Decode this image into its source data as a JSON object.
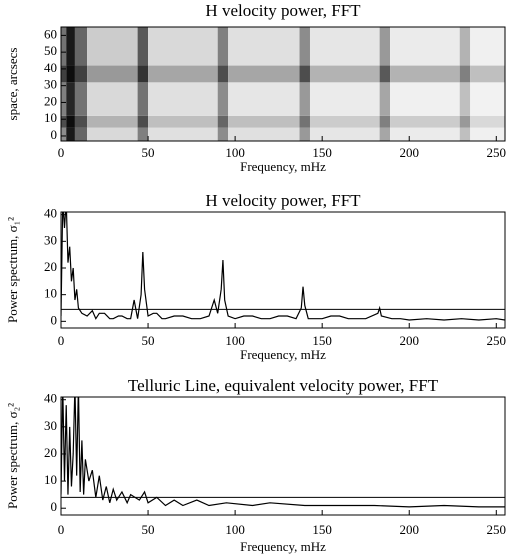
{
  "chart_data": [
    {
      "type": "heatmap",
      "title": "H  velocity power, FFT",
      "xlabel": "Frequency, mHz",
      "ylabel": "space, arcsecs",
      "xbins": [
        0,
        3,
        8,
        15,
        44,
        50,
        90,
        96,
        137,
        143,
        183,
        189,
        229,
        235,
        255
      ],
      "ybins": [
        -3,
        5,
        12,
        32,
        42,
        65
      ],
      "z": [
        [
          0.45,
          0.9,
          0.6,
          0.15,
          0.5,
          0.12,
          0.45,
          0.12,
          0.4,
          0.1,
          0.35,
          0.08,
          0.25,
          0.06
        ],
        [
          0.7,
          0.95,
          0.7,
          0.3,
          0.7,
          0.25,
          0.6,
          0.25,
          0.55,
          0.2,
          0.5,
          0.2,
          0.4,
          0.15
        ],
        [
          0.5,
          0.85,
          0.55,
          0.15,
          0.55,
          0.12,
          0.45,
          0.1,
          0.4,
          0.08,
          0.35,
          0.06,
          0.25,
          0.05
        ],
        [
          0.75,
          0.95,
          0.75,
          0.4,
          0.8,
          0.35,
          0.7,
          0.35,
          0.7,
          0.3,
          0.65,
          0.3,
          0.5,
          0.25
        ],
        [
          0.55,
          0.9,
          0.6,
          0.2,
          0.65,
          0.15,
          0.5,
          0.12,
          0.45,
          0.1,
          0.4,
          0.08,
          0.3,
          0.06
        ]
      ],
      "cmap": "gray_r",
      "color": "#000000",
      "xlim": [
        0,
        255
      ],
      "ylim": [
        -3,
        65
      ],
      "xticks": [
        0,
        50,
        100,
        150,
        200,
        250
      ],
      "yticks": [
        0,
        10,
        20,
        30,
        40,
        50,
        60
      ]
    },
    {
      "type": "line",
      "title": "H  velocity power, FFT",
      "xlabel": "Frequency, mHz",
      "ylabel": "Power spectrum, σ₁²",
      "color": "#000000",
      "x": [
        0,
        1,
        2,
        3,
        4,
        5,
        6,
        7,
        8,
        9,
        10,
        12,
        15,
        18,
        20,
        22,
        25,
        28,
        30,
        33,
        35,
        38,
        40,
        42,
        44,
        46,
        47,
        48,
        50,
        53,
        55,
        58,
        60,
        65,
        70,
        75,
        80,
        85,
        88,
        90,
        92,
        93,
        94,
        96,
        100,
        105,
        110,
        115,
        120,
        125,
        130,
        135,
        138,
        139,
        140,
        142,
        145,
        150,
        155,
        160,
        165,
        170,
        175,
        182,
        183,
        184,
        190,
        195,
        200,
        210,
        220,
        230,
        240,
        250,
        255
      ],
      "values": [
        2,
        45,
        35,
        45,
        22,
        28,
        15,
        20,
        8,
        12,
        5,
        3,
        2,
        4,
        1,
        3,
        3,
        1,
        1,
        2,
        2,
        1,
        1,
        8,
        1,
        10,
        26,
        12,
        2,
        3,
        3,
        1,
        1,
        2,
        2,
        1,
        1,
        2,
        8,
        3,
        12,
        23,
        8,
        2,
        1,
        2,
        2,
        1,
        1,
        2,
        2,
        1,
        5,
        13,
        6,
        1,
        1,
        1,
        2,
        2,
        1,
        1,
        1,
        3,
        5,
        2,
        1,
        1,
        0.5,
        1,
        0.5,
        1,
        0.5,
        1,
        0.5
      ],
      "hline": 4.5,
      "xlim": [
        0,
        255
      ],
      "ylim": [
        -2.5,
        41
      ],
      "xticks": [
        0,
        50,
        100,
        150,
        200,
        250
      ],
      "yticks": [
        0,
        10,
        20,
        30,
        40
      ]
    },
    {
      "type": "line",
      "title": "Telluric Line, equivalent velocity power, FFT",
      "xlabel": "Frequency, mHz",
      "ylabel": "Power spectrum, σ₂²",
      "color": "#000000",
      "x": [
        0,
        1,
        2,
        3,
        4,
        5,
        6,
        7,
        8,
        9,
        10,
        11,
        12,
        13,
        14,
        16,
        18,
        20,
        22,
        24,
        26,
        28,
        30,
        32,
        35,
        38,
        40,
        45,
        48,
        50,
        55,
        60,
        65,
        70,
        78,
        85,
        95,
        110,
        120,
        140,
        160,
        180,
        200,
        220,
        240,
        255
      ],
      "values": [
        5,
        45,
        10,
        38,
        5,
        30,
        8,
        20,
        45,
        12,
        45,
        6,
        25,
        5,
        18,
        10,
        14,
        4,
        12,
        3,
        8,
        2,
        7,
        3,
        6,
        2,
        5,
        3,
        6,
        2,
        4,
        1,
        3,
        1,
        3,
        1,
        2,
        1,
        2,
        1,
        1,
        1,
        0.5,
        1,
        0.5,
        0.5
      ],
      "hline": 4,
      "xlim": [
        0,
        255
      ],
      "ylim": [
        -2.5,
        41
      ],
      "xticks": [
        0,
        50,
        100,
        150,
        200,
        250
      ],
      "yticks": [
        0,
        10,
        20,
        30,
        40
      ]
    }
  ]
}
